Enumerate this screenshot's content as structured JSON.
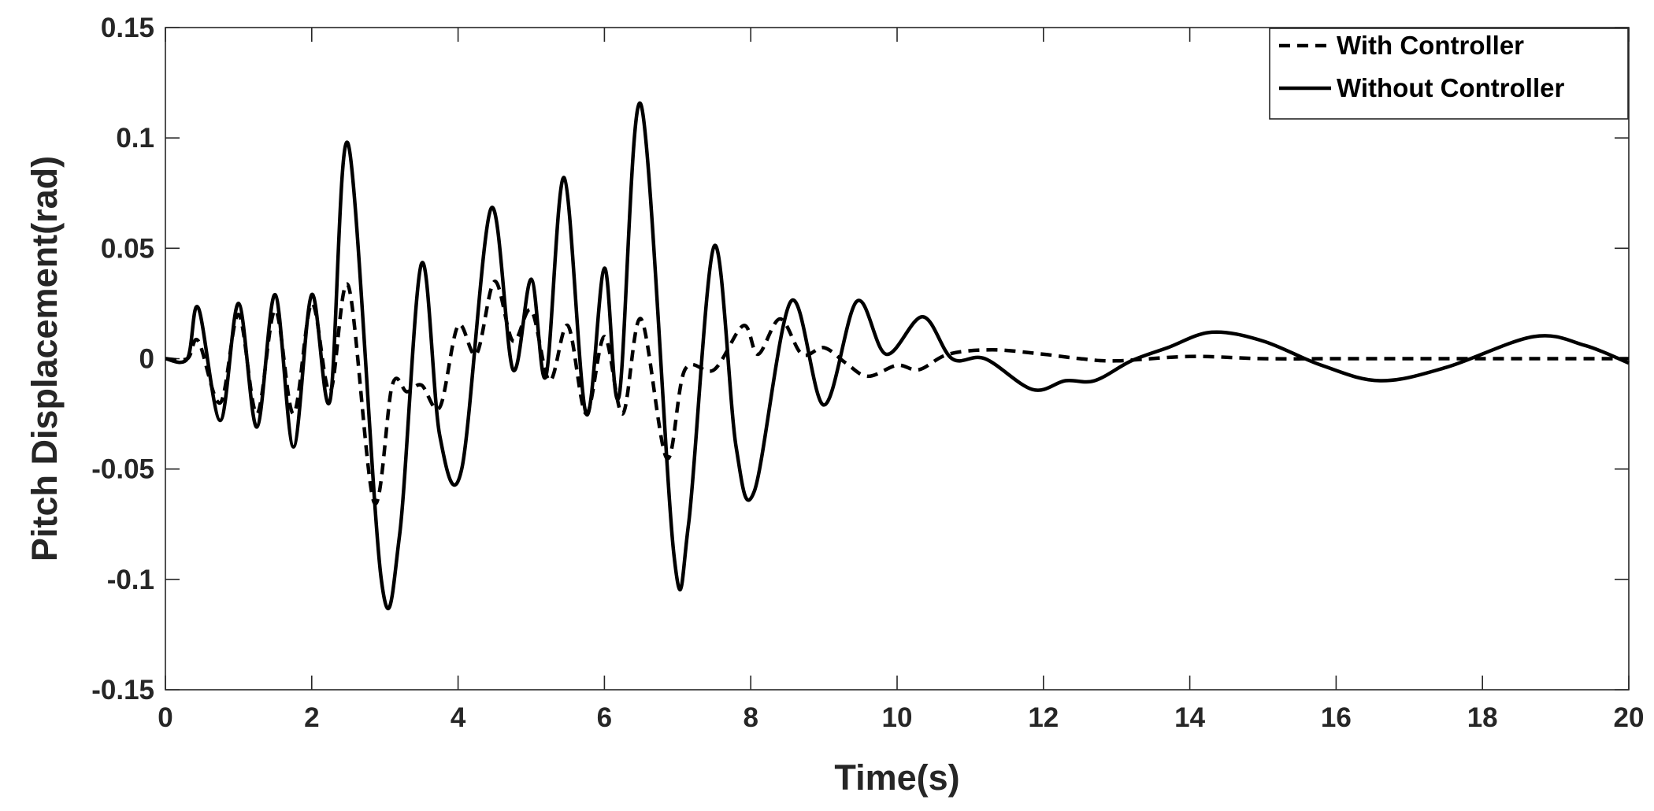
{
  "chart_data": {
    "type": "line",
    "title": "",
    "xlabel": "Time(s)",
    "ylabel": "Pitch Displacement(rad)",
    "xlim": [
      0,
      20
    ],
    "ylim": [
      -0.15,
      0.15
    ],
    "xticks": [
      0,
      2,
      4,
      6,
      8,
      10,
      12,
      14,
      16,
      18,
      20
    ],
    "yticks": [
      -0.15,
      -0.1,
      -0.05,
      0,
      0.05,
      0.1,
      0.15
    ],
    "xtick_labels": [
      "0",
      "2",
      "4",
      "6",
      "8",
      "10",
      "12",
      "14",
      "16",
      "18",
      "20"
    ],
    "ytick_labels": [
      "-0.15",
      "-0.1",
      "-0.05",
      "0",
      "0.05",
      "0.1",
      "0.15"
    ],
    "grid": false,
    "legend": {
      "position": "top-right",
      "entries": [
        "With Controller",
        "Without Controller"
      ]
    },
    "series": [
      {
        "name": "With Controller",
        "style": "dashed",
        "color": "#000000",
        "x": [
          0,
          0.3,
          0.45,
          0.75,
          1.0,
          1.25,
          1.5,
          1.75,
          2.0,
          2.25,
          2.5,
          2.85,
          3.1,
          3.3,
          3.5,
          3.75,
          4.0,
          4.25,
          4.5,
          4.75,
          5.0,
          5.25,
          5.5,
          5.75,
          6.0,
          6.25,
          6.5,
          6.85,
          7.1,
          7.5,
          7.9,
          8.1,
          8.4,
          8.7,
          9.0,
          9.3,
          9.6,
          10.0,
          10.3,
          10.7,
          11.3,
          12.0,
          12.5,
          13.0,
          14.0,
          15.0,
          16.0,
          17.0,
          18.0,
          19.0,
          20.0
        ],
        "values": [
          0,
          0,
          0.008,
          -0.02,
          0.02,
          -0.025,
          0.022,
          -0.025,
          0.025,
          -0.015,
          0.033,
          -0.065,
          -0.012,
          -0.015,
          -0.012,
          -0.022,
          0.015,
          0.002,
          0.035,
          0.008,
          0.022,
          -0.01,
          0.015,
          -0.025,
          0.01,
          -0.025,
          0.018,
          -0.045,
          -0.005,
          -0.005,
          0.015,
          0.002,
          0.018,
          0.002,
          0.005,
          -0.002,
          -0.008,
          -0.003,
          -0.005,
          0.002,
          0.004,
          0.002,
          0.0,
          -0.001,
          0.001,
          0.0,
          0.0,
          0.0,
          0.0,
          0.0,
          0.0
        ]
      },
      {
        "name": "Without Controller",
        "style": "solid",
        "color": "#000000",
        "x": [
          0,
          0.3,
          0.45,
          0.75,
          1.0,
          1.25,
          1.5,
          1.75,
          2.0,
          2.25,
          2.5,
          2.95,
          3.2,
          3.5,
          3.75,
          4.05,
          4.45,
          4.75,
          5.0,
          5.2,
          5.45,
          5.75,
          6.0,
          6.2,
          6.5,
          6.95,
          7.15,
          7.5,
          7.8,
          8.05,
          8.55,
          9.0,
          9.45,
          9.85,
          10.35,
          10.75,
          11.2,
          11.85,
          12.3,
          12.7,
          13.2,
          13.7,
          14.3,
          15.0,
          15.8,
          16.6,
          17.5,
          18.7,
          19.4,
          20.0
        ],
        "values": [
          0,
          0,
          0.023,
          -0.028,
          0.025,
          -0.031,
          0.029,
          -0.04,
          0.029,
          -0.019,
          0.097,
          -0.1,
          -0.08,
          0.043,
          -0.035,
          -0.05,
          0.068,
          -0.005,
          0.036,
          -0.008,
          0.082,
          -0.025,
          0.041,
          -0.017,
          0.115,
          -0.089,
          -0.075,
          0.051,
          -0.04,
          -0.06,
          0.026,
          -0.021,
          0.026,
          0.002,
          0.019,
          0.0,
          0.0,
          -0.014,
          -0.01,
          -0.01,
          -0.001,
          0.005,
          0.012,
          0.008,
          -0.003,
          -0.01,
          -0.004,
          0.01,
          0.006,
          -0.002
        ]
      }
    ]
  }
}
